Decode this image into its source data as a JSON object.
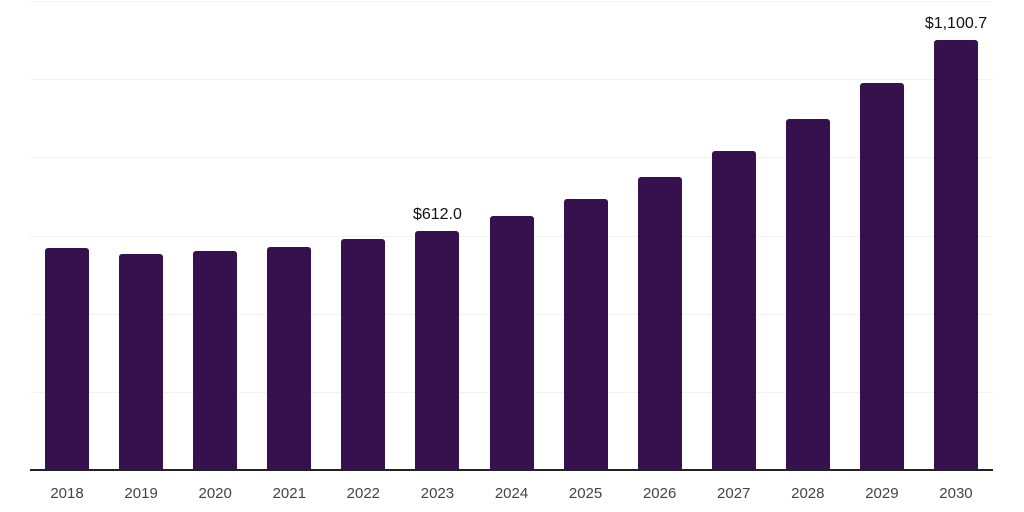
{
  "chart_data": {
    "type": "bar",
    "title": "",
    "xlabel": "",
    "ylabel": "",
    "categories": [
      "2018",
      "2019",
      "2020",
      "2021",
      "2022",
      "2023",
      "2024",
      "2025",
      "2026",
      "2027",
      "2028",
      "2029",
      "2030"
    ],
    "values": [
      568,
      552,
      560,
      571,
      590,
      612.0,
      650,
      693,
      750,
      816,
      897,
      991,
      1100.7
    ],
    "data_labels": [
      "",
      "",
      "",
      "",
      "",
      "$612.0",
      "",
      "",
      "",
      "",
      "",
      "",
      "$1,100.7"
    ],
    "ylim": [
      0,
      1200
    ],
    "gridline_step": 200,
    "grid": true,
    "legend_position": "none",
    "y_tick_labels_visible": false,
    "colors": {
      "bar": "#36114D",
      "gridline": "#F2F2F2",
      "axis_line": "#222222",
      "tick_label": "#444444",
      "data_label": "#111111",
      "background": "#FFFFFF"
    }
  }
}
